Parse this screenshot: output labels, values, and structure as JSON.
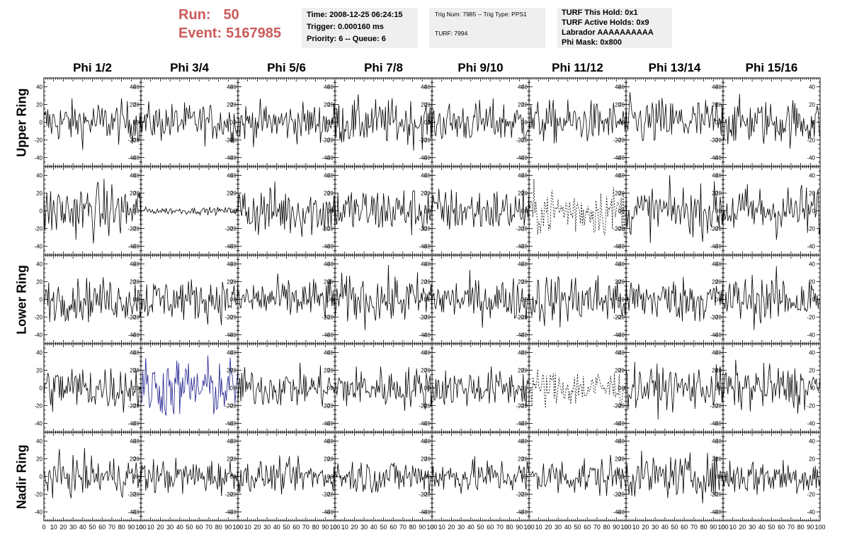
{
  "header": {
    "run_label": "Run:",
    "run_value": "50",
    "event_label": "Event:",
    "event_value": "5167985",
    "time": "Time: 2008-12-25 06:24:15",
    "trigger": "Trigger: 0.000160 ms",
    "priority": "Priority: 6 -- Queue: 6",
    "trig_num": "Trig Num: 7985 -- Trig Type: PPS1",
    "turf": "TURF: 7994",
    "turf_this_hold": "TURF This Hold: 0x1",
    "turf_active_holds": "TURF Active Holds: 0x9",
    "labrador": "Labrador AAAAAAAAAA",
    "phi_mask": "Phi Mask: 0x800"
  },
  "colors": {
    "run_text": "#cc5a5a",
    "trace_default": "#000000",
    "trace_highlight": "#1f1f8f",
    "info_bg": "#efefef"
  },
  "chart_data": {
    "type": "line",
    "title": "",
    "columns": [
      "Phi 1/2",
      "Phi 3/4",
      "Phi 5/6",
      "Phi 7/8",
      "Phi 9/10",
      "Phi 11/12",
      "Phi 13/14",
      "Phi 15/16"
    ],
    "rows": [
      "Upper Ring",
      "",
      "Lower Ring",
      "",
      "Nadir Ring"
    ],
    "xlim": [
      0,
      100
    ],
    "ylim": [
      -50,
      50
    ],
    "x_ticks": [
      "0",
      "10",
      "20",
      "30",
      "40",
      "50",
      "60",
      "70",
      "80",
      "90",
      "100"
    ],
    "y_ticks": [
      "40",
      "20",
      "0",
      "-20",
      "-40"
    ],
    "xlabel": "",
    "ylabel": "",
    "grid": false,
    "samples_per_trace": 100,
    "series_style": [
      [
        "solid",
        "solid",
        "solid",
        "solid",
        "solid",
        "solid",
        "solid",
        "solid"
      ],
      [
        "solid",
        "solid",
        "solid",
        "solid",
        "solid",
        "dashed",
        "solid",
        "solid"
      ],
      [
        "solid",
        "solid",
        "solid",
        "solid",
        "solid",
        "solid",
        "solid",
        "solid"
      ],
      [
        "solid",
        "highlight",
        "solid",
        "solid",
        "solid",
        "dashed",
        "solid",
        "solid"
      ],
      [
        "solid",
        "solid",
        "solid",
        "solid",
        "solid",
        "solid",
        "solid",
        "solid"
      ]
    ],
    "series_amplitude": [
      [
        12,
        11,
        11,
        13,
        12,
        12,
        14,
        13
      ],
      [
        16,
        2,
        15,
        14,
        13,
        14,
        14,
        15
      ],
      [
        12,
        12,
        12,
        14,
        12,
        15,
        13,
        14
      ],
      [
        13,
        17,
        11,
        12,
        11,
        11,
        12,
        13
      ],
      [
        11,
        10,
        9,
        10,
        10,
        11,
        12,
        11
      ]
    ]
  }
}
